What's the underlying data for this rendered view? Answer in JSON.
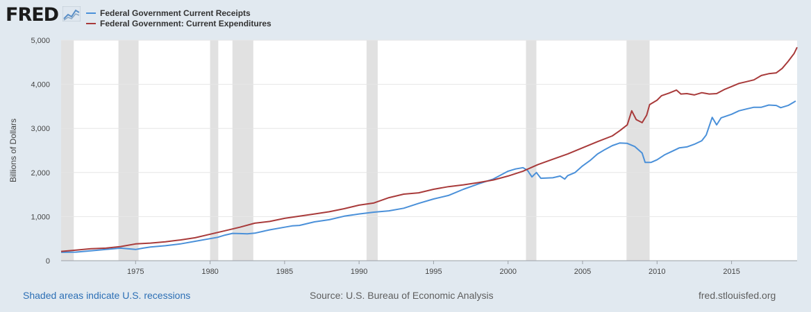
{
  "logo": {
    "text": "FRED",
    "icon": "fred-chart-logo-icon"
  },
  "legend": [
    {
      "label": "Federal Government Current Receipts",
      "color": "#4a90d9"
    },
    {
      "label": "Federal Government: Current Expenditures",
      "color": "#a83a3a"
    }
  ],
  "footer": {
    "recession_note": "Shaded areas indicate U.S. recessions",
    "source": "Source: U.S. Bureau of Economic Analysis",
    "site": "fred.stlouisfed.org"
  },
  "chart_data": {
    "type": "line",
    "ylabel": "Billions of Dollars",
    "xlim": [
      1970,
      2019.4
    ],
    "ylim": [
      0,
      5000
    ],
    "yticks": [
      0,
      1000,
      2000,
      3000,
      4000,
      5000
    ],
    "ytick_labels": [
      "0",
      "1,000",
      "2,000",
      "3,000",
      "4,000",
      "5,000"
    ],
    "xticks": [
      1975,
      1980,
      1985,
      1990,
      1995,
      2000,
      2005,
      2010,
      2015
    ],
    "xtick_labels": [
      "1975",
      "1980",
      "1985",
      "1990",
      "1995",
      "2000",
      "2005",
      "2010",
      "2015"
    ],
    "grid": true,
    "recessions": [
      [
        1970.0,
        1970.85
      ],
      [
        1973.85,
        1975.2
      ],
      [
        1980.0,
        1980.55
      ],
      [
        1981.5,
        1982.9
      ],
      [
        1990.5,
        1991.25
      ],
      [
        2001.2,
        2001.9
      ],
      [
        2007.95,
        2009.5
      ]
    ],
    "recession_color": "#e1e1e1",
    "series": [
      {
        "name": "Federal Government Current Receipts",
        "color": "#4a90d9",
        "points": [
          [
            1970,
            190
          ],
          [
            1971,
            195
          ],
          [
            1972,
            225
          ],
          [
            1973,
            255
          ],
          [
            1974,
            285
          ],
          [
            1975,
            255
          ],
          [
            1975.5,
            285
          ],
          [
            1976,
            310
          ],
          [
            1977,
            340
          ],
          [
            1978,
            380
          ],
          [
            1979,
            440
          ],
          [
            1980,
            500
          ],
          [
            1980.5,
            530
          ],
          [
            1981,
            580
          ],
          [
            1981.5,
            620
          ],
          [
            1982,
            615
          ],
          [
            1982.5,
            610
          ],
          [
            1983,
            625
          ],
          [
            1984,
            700
          ],
          [
            1985,
            760
          ],
          [
            1985.5,
            790
          ],
          [
            1986,
            800
          ],
          [
            1987,
            880
          ],
          [
            1988,
            930
          ],
          [
            1989,
            1010
          ],
          [
            1990,
            1060
          ],
          [
            1991,
            1100
          ],
          [
            1992,
            1130
          ],
          [
            1993,
            1190
          ],
          [
            1994,
            1300
          ],
          [
            1995,
            1400
          ],
          [
            1996,
            1480
          ],
          [
            1997,
            1620
          ],
          [
            1998,
            1740
          ],
          [
            1999,
            1850
          ],
          [
            2000,
            2030
          ],
          [
            2000.5,
            2080
          ],
          [
            2001,
            2110
          ],
          [
            2001.3,
            2050
          ],
          [
            2001.6,
            1900
          ],
          [
            2001.9,
            2000
          ],
          [
            2002.2,
            1870
          ],
          [
            2003,
            1880
          ],
          [
            2003.5,
            1920
          ],
          [
            2003.8,
            1850
          ],
          [
            2004,
            1930
          ],
          [
            2004.5,
            2000
          ],
          [
            2005,
            2150
          ],
          [
            2005.5,
            2270
          ],
          [
            2006,
            2420
          ],
          [
            2006.5,
            2520
          ],
          [
            2007,
            2610
          ],
          [
            2007.5,
            2670
          ],
          [
            2008,
            2660
          ],
          [
            2008.5,
            2590
          ],
          [
            2009,
            2440
          ],
          [
            2009.2,
            2230
          ],
          [
            2009.6,
            2230
          ],
          [
            2010,
            2290
          ],
          [
            2010.5,
            2400
          ],
          [
            2011,
            2480
          ],
          [
            2011.5,
            2560
          ],
          [
            2012,
            2580
          ],
          [
            2012.5,
            2640
          ],
          [
            2013,
            2720
          ],
          [
            2013.3,
            2850
          ],
          [
            2013.7,
            3250
          ],
          [
            2014,
            3080
          ],
          [
            2014.3,
            3240
          ],
          [
            2015,
            3320
          ],
          [
            2015.5,
            3400
          ],
          [
            2016,
            3440
          ],
          [
            2016.5,
            3480
          ],
          [
            2017,
            3480
          ],
          [
            2017.5,
            3530
          ],
          [
            2018,
            3520
          ],
          [
            2018.3,
            3470
          ],
          [
            2018.8,
            3520
          ],
          [
            2019.3,
            3620
          ]
        ]
      },
      {
        "name": "Federal Government: Current Expenditures",
        "color": "#a83a3a",
        "points": [
          [
            1970,
            210
          ],
          [
            1971,
            240
          ],
          [
            1972,
            270
          ],
          [
            1973,
            285
          ],
          [
            1974,
            320
          ],
          [
            1975,
            380
          ],
          [
            1976,
            400
          ],
          [
            1977,
            430
          ],
          [
            1978,
            470
          ],
          [
            1979,
            520
          ],
          [
            1980,
            600
          ],
          [
            1981,
            680
          ],
          [
            1982,
            760
          ],
          [
            1983,
            850
          ],
          [
            1984,
            890
          ],
          [
            1985,
            960
          ],
          [
            1986,
            1010
          ],
          [
            1987,
            1060
          ],
          [
            1988,
            1110
          ],
          [
            1989,
            1180
          ],
          [
            1990,
            1260
          ],
          [
            1991,
            1310
          ],
          [
            1992,
            1430
          ],
          [
            1993,
            1510
          ],
          [
            1994,
            1540
          ],
          [
            1995,
            1620
          ],
          [
            1996,
            1680
          ],
          [
            1997,
            1720
          ],
          [
            1998,
            1770
          ],
          [
            1999,
            1830
          ],
          [
            2000,
            1920
          ],
          [
            2001,
            2030
          ],
          [
            2002,
            2180
          ],
          [
            2003,
            2300
          ],
          [
            2004,
            2420
          ],
          [
            2005,
            2560
          ],
          [
            2006,
            2700
          ],
          [
            2007,
            2830
          ],
          [
            2007.5,
            2950
          ],
          [
            2008,
            3080
          ],
          [
            2008.3,
            3400
          ],
          [
            2008.6,
            3200
          ],
          [
            2009,
            3130
          ],
          [
            2009.3,
            3300
          ],
          [
            2009.5,
            3540
          ],
          [
            2010,
            3640
          ],
          [
            2010.3,
            3740
          ],
          [
            2010.8,
            3800
          ],
          [
            2011.3,
            3870
          ],
          [
            2011.6,
            3780
          ],
          [
            2012,
            3790
          ],
          [
            2012.5,
            3760
          ],
          [
            2013,
            3810
          ],
          [
            2013.5,
            3780
          ],
          [
            2014,
            3790
          ],
          [
            2014.5,
            3880
          ],
          [
            2015,
            3950
          ],
          [
            2015.5,
            4020
          ],
          [
            2016,
            4060
          ],
          [
            2016.5,
            4100
          ],
          [
            2017,
            4200
          ],
          [
            2017.5,
            4240
          ],
          [
            2018,
            4260
          ],
          [
            2018.4,
            4360
          ],
          [
            2018.8,
            4520
          ],
          [
            2019.2,
            4700
          ],
          [
            2019.4,
            4840
          ]
        ]
      }
    ]
  }
}
